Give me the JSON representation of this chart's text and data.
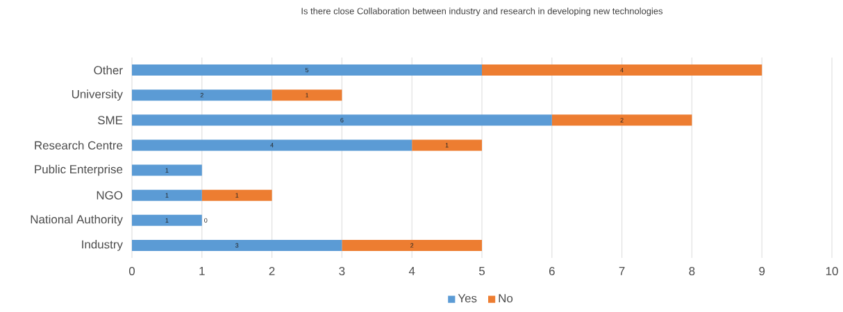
{
  "chart_data": {
    "type": "bar",
    "orientation": "horizontal",
    "stacked": true,
    "title": "Is there close Collaboration between industry and research in developing new technologies",
    "categories": [
      "Other",
      "University",
      "SME",
      "Research Centre",
      "Public Enterprise",
      "NGO",
      "National Authority",
      "Industry"
    ],
    "series": [
      {
        "name": "Yes",
        "color": "#5b9bd5",
        "values": [
          5,
          2,
          6,
          4,
          1,
          1,
          1,
          3
        ]
      },
      {
        "name": "No",
        "color": "#ed7d31",
        "values": [
          4,
          1,
          2,
          1,
          null,
          1,
          0,
          2
        ]
      }
    ],
    "xlim": [
      0,
      10
    ],
    "xticks": [
      0,
      1,
      2,
      3,
      4,
      5,
      6,
      7,
      8,
      9,
      10
    ],
    "grid": "x",
    "legend": "bottom",
    "data_labels": true
  }
}
